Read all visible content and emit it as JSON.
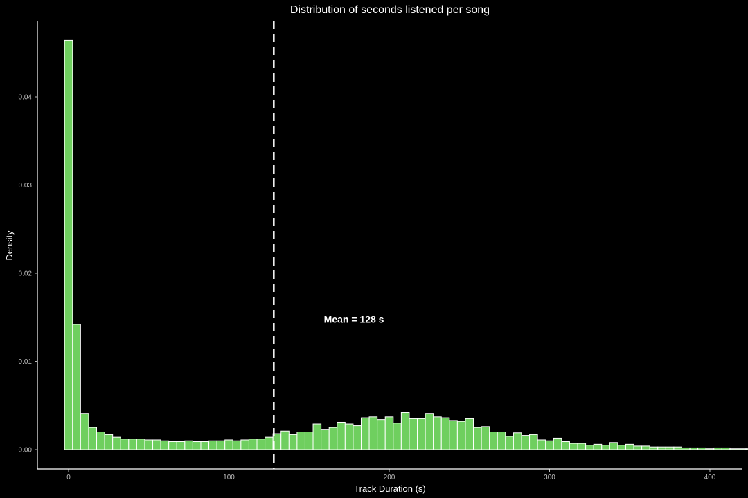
{
  "chart_data": {
    "type": "bar",
    "title": "Distribution of seconds listened per song",
    "xlabel": "Track Duration (s)",
    "ylabel": "Density",
    "xlim": [
      -20,
      420
    ],
    "ylim": [
      0,
      0.0465
    ],
    "x_ticks": [
      0,
      100,
      200,
      300,
      400
    ],
    "y_ticks": [
      0.0,
      0.01,
      0.02,
      0.03,
      0.04
    ],
    "y_tick_labels": [
      "0.00",
      "0.01",
      "0.02",
      "0.03",
      "0.04"
    ],
    "bin_width": 5,
    "bin_start": -2.5,
    "values": [
      0.0464,
      0.0142,
      0.0041,
      0.0025,
      0.002,
      0.0017,
      0.0014,
      0.0012,
      0.0012,
      0.0012,
      0.0011,
      0.0011,
      0.001,
      0.0009,
      0.0009,
      0.001,
      0.0009,
      0.0009,
      0.001,
      0.001,
      0.0011,
      0.001,
      0.0011,
      0.0012,
      0.0012,
      0.0014,
      0.0018,
      0.0021,
      0.0017,
      0.002,
      0.002,
      0.0029,
      0.0023,
      0.0025,
      0.0031,
      0.0029,
      0.0027,
      0.0036,
      0.0037,
      0.0034,
      0.0037,
      0.003,
      0.0042,
      0.0035,
      0.0035,
      0.0041,
      0.0037,
      0.0036,
      0.0033,
      0.0032,
      0.0035,
      0.0025,
      0.0026,
      0.002,
      0.002,
      0.0015,
      0.0019,
      0.0016,
      0.0017,
      0.0011,
      0.001,
      0.0013,
      0.0009,
      0.0007,
      0.0007,
      0.0005,
      0.0006,
      0.0005,
      0.0008,
      0.0005,
      0.0006,
      0.0004,
      0.0004,
      0.0003,
      0.0003,
      0.0003,
      0.0003,
      0.0002,
      0.0002,
      0.0002,
      0.0001,
      0.0002,
      0.0002,
      0.0001,
      0.0001,
      0.0001,
      0.0001,
      0.0001,
      0.0001,
      0.0001,
      0.0003
    ],
    "mean_line": {
      "x": 128,
      "label": "Mean = 128 s"
    },
    "colors": {
      "bar_fill": "#6fcf5f",
      "bar_stroke": "#ffffff",
      "background": "#000000",
      "line": "#ffffff"
    },
    "grid": false,
    "legend": "none"
  }
}
